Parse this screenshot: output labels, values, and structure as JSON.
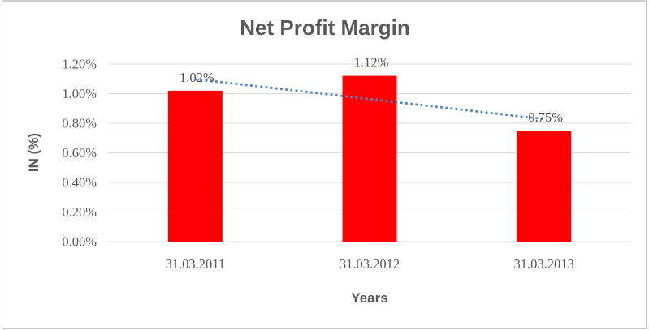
{
  "chart_data": {
    "type": "bar",
    "title": "Net Profit Margin",
    "xlabel": "Years",
    "ylabel": "IN (%)",
    "categories": [
      "31.03.2011",
      "31.03.2012",
      "31.03.2013"
    ],
    "values": [
      1.02,
      1.12,
      0.75
    ],
    "value_labels": [
      "1.02%",
      "1.12%",
      "0.75%"
    ],
    "y_ticks": [
      {
        "label": "0.00%",
        "value": 0.0
      },
      {
        "label": "0.20%",
        "value": 0.2
      },
      {
        "label": "0.40%",
        "value": 0.4
      },
      {
        "label": "0.60%",
        "value": 0.6
      },
      {
        "label": "0.80%",
        "value": 0.8
      },
      {
        "label": "1.00%",
        "value": 1.0
      },
      {
        "label": "1.20%",
        "value": 1.2
      }
    ],
    "ylim": [
      0,
      1.2
    ],
    "grid": true,
    "legend": "none",
    "bar_color": "#ff0000",
    "grid_color": "#d9d9d9",
    "text_color": "#595959",
    "data_label_color": "#4d4d4d",
    "trendline": {
      "type": "linear",
      "style": "dotted",
      "color": "#4e86c8",
      "endpoints_pct": [
        1.098,
        0.828
      ]
    }
  }
}
